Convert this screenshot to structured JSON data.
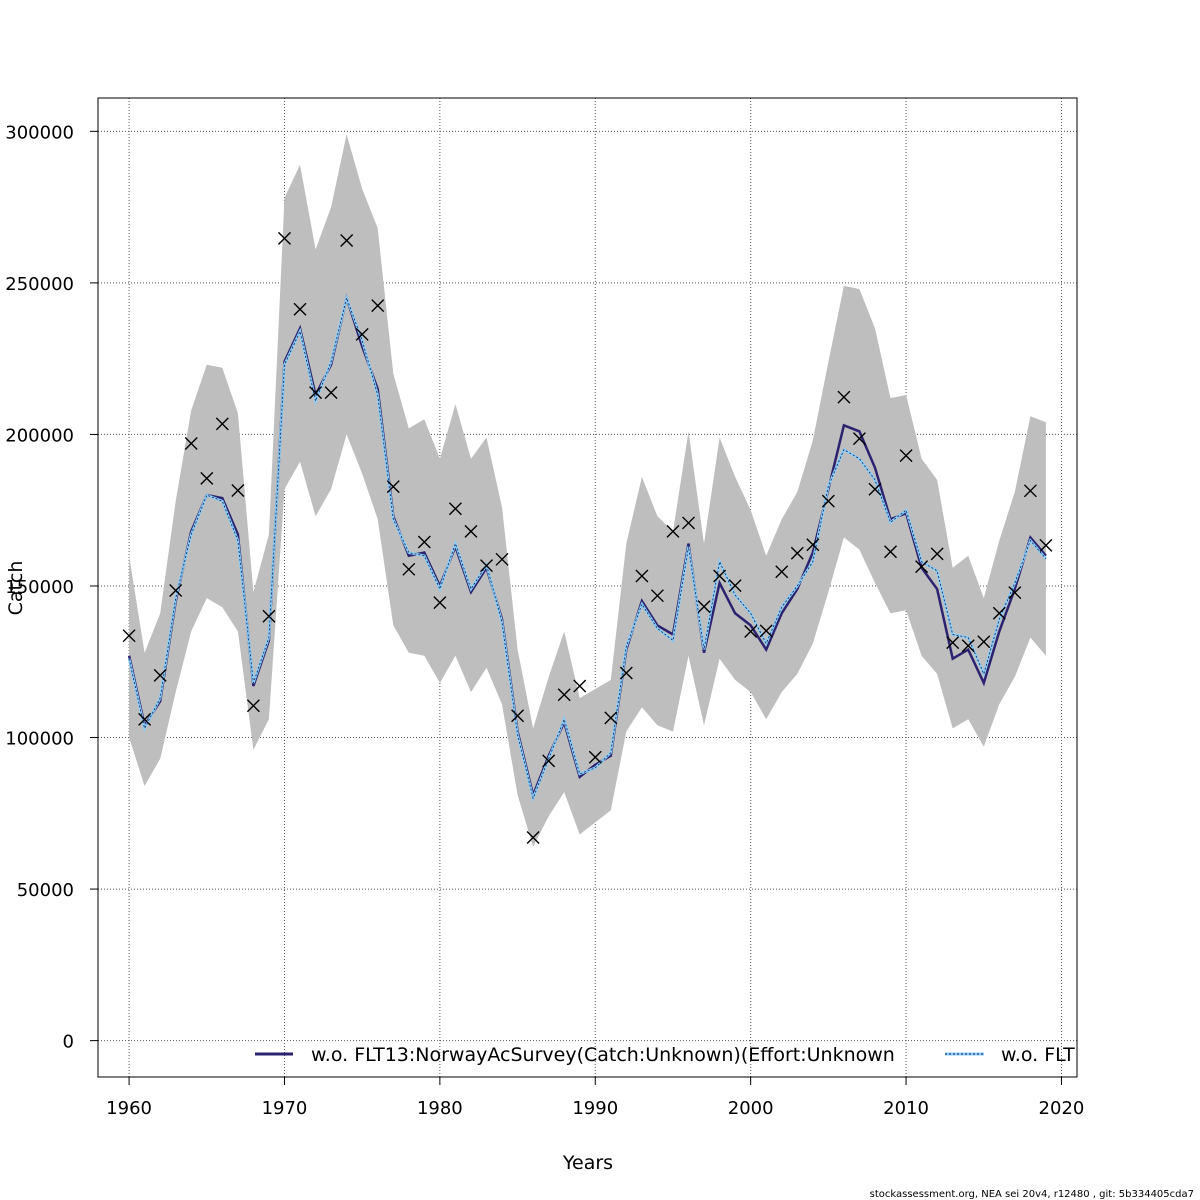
{
  "chart_data": {
    "type": "line",
    "xlabel": "Years",
    "ylabel": "Catch",
    "xlim": [
      1958,
      2021
    ],
    "ylim": [
      -12000,
      311000
    ],
    "x_ticks": [
      1960,
      1970,
      1980,
      1990,
      2000,
      2010,
      2020
    ],
    "y_ticks": [
      0,
      50000,
      100000,
      150000,
      200000,
      250000,
      300000
    ],
    "grid": true,
    "legend_position": "bottom",
    "colors": {
      "band": "#bebebe",
      "series_1": "#2b2370",
      "series_2": "#87cefa",
      "series_2_dots": "#1a1a4a",
      "observed": "#000000",
      "grid": "#555555"
    },
    "x": [
      1960,
      1961,
      1962,
      1963,
      1964,
      1965,
      1966,
      1967,
      1968,
      1969,
      1970,
      1971,
      1972,
      1973,
      1974,
      1975,
      1976,
      1977,
      1978,
      1979,
      1980,
      1981,
      1982,
      1983,
      1984,
      1985,
      1986,
      1987,
      1988,
      1989,
      1990,
      1991,
      1992,
      1993,
      1994,
      1995,
      1996,
      1997,
      1998,
      1999,
      2000,
      2001,
      2002,
      2003,
      2004,
      2005,
      2006,
      2007,
      2008,
      2009,
      2010,
      2011,
      2012,
      2013,
      2014,
      2015,
      2016,
      2017,
      2018,
      2019
    ],
    "series": [
      {
        "name": "w.o. FLT13:NorwayAcSurvey(Catch:Unknown)(Effort:Unknown",
        "values": [
          127000,
          104000,
          112000,
          145000,
          168000,
          180000,
          179000,
          167000,
          117000,
          132000,
          224000,
          235000,
          213000,
          223000,
          245000,
          229000,
          215000,
          173000,
          160000,
          161000,
          150000,
          163000,
          148000,
          156000,
          139000,
          102000,
          81000,
          94000,
          105000,
          87000,
          91000,
          94000,
          129000,
          145000,
          137000,
          134000,
          164000,
          128000,
          151000,
          141000,
          137000,
          129000,
          141000,
          149000,
          161000,
          182000,
          203000,
          201000,
          189000,
          172000,
          174000,
          156000,
          149000,
          126000,
          129000,
          118000,
          135000,
          149000,
          166000,
          160000
        ]
      },
      {
        "name": "w.o. FLT",
        "values": [
          126000,
          103000,
          113000,
          146000,
          167000,
          180000,
          178000,
          165000,
          118000,
          133000,
          223000,
          234000,
          211000,
          224000,
          245000,
          231000,
          213000,
          172000,
          161000,
          160000,
          149000,
          164000,
          149000,
          157000,
          138000,
          101000,
          80000,
          93000,
          106000,
          88000,
          90000,
          95000,
          130000,
          144000,
          136000,
          132000,
          163000,
          129000,
          158000,
          147000,
          141000,
          131000,
          143000,
          150000,
          158000,
          183000,
          195000,
          192000,
          185000,
          171000,
          175000,
          158000,
          155000,
          134000,
          133000,
          121000,
          139000,
          151000,
          165000,
          159000
        ]
      }
    ],
    "band": {
      "upper": [
        160000,
        128000,
        141000,
        178000,
        208000,
        223000,
        222000,
        207000,
        148000,
        167000,
        278000,
        289000,
        261000,
        275000,
        299000,
        281000,
        268000,
        220000,
        202000,
        205000,
        192000,
        210000,
        192000,
        199000,
        176000,
        129000,
        103000,
        120000,
        135000,
        113000,
        116000,
        119000,
        164000,
        186000,
        173000,
        168000,
        201000,
        164000,
        199000,
        186000,
        175000,
        160000,
        172000,
        181000,
        198000,
        224000,
        249000,
        248000,
        235000,
        212000,
        213000,
        192000,
        185000,
        156000,
        160000,
        146000,
        165000,
        181000,
        206000,
        204000
      ],
      "lower": [
        100000,
        84000,
        93000,
        115000,
        135000,
        146000,
        143000,
        135000,
        96000,
        106000,
        182000,
        191000,
        173000,
        182000,
        200000,
        187000,
        172000,
        137000,
        128000,
        127000,
        118000,
        127000,
        115000,
        123000,
        111000,
        81000,
        64000,
        74000,
        82000,
        68000,
        72000,
        76000,
        102000,
        110000,
        104000,
        102000,
        127000,
        104000,
        126000,
        119000,
        115000,
        106000,
        115000,
        121000,
        131000,
        148000,
        166000,
        162000,
        151000,
        141000,
        142000,
        127000,
        121000,
        103000,
        106000,
        97000,
        111000,
        120000,
        133000,
        127000
      ]
    },
    "observed": [
      133600,
      106000,
      120500,
      148500,
      197000,
      185500,
      203500,
      181500,
      110500,
      140000,
      264700,
      241300,
      213800,
      213800,
      264000,
      233000,
      242500,
      182800,
      155500,
      164500,
      144500,
      175500,
      168000,
      156700,
      158800,
      107200,
      67000,
      92300,
      114100,
      117000,
      93500,
      106500,
      121300,
      153300,
      146800,
      168000,
      170800,
      143200,
      153300,
      150100,
      135000,
      135200,
      154700,
      160800,
      163600,
      178000,
      212300,
      198600,
      181900,
      161300,
      193000,
      156400,
      160600,
      131300,
      130300,
      131600,
      141000,
      147800,
      181400,
      163400
    ],
    "legend": [
      "w.o. FLT13:NorwayAcSurvey(Catch:Unknown)(Effort:Unknown",
      "w.o. FLT"
    ]
  },
  "footer": "stockassessment.org, NEA  sei  20v4, r12480 , git: 5b334405cda7"
}
